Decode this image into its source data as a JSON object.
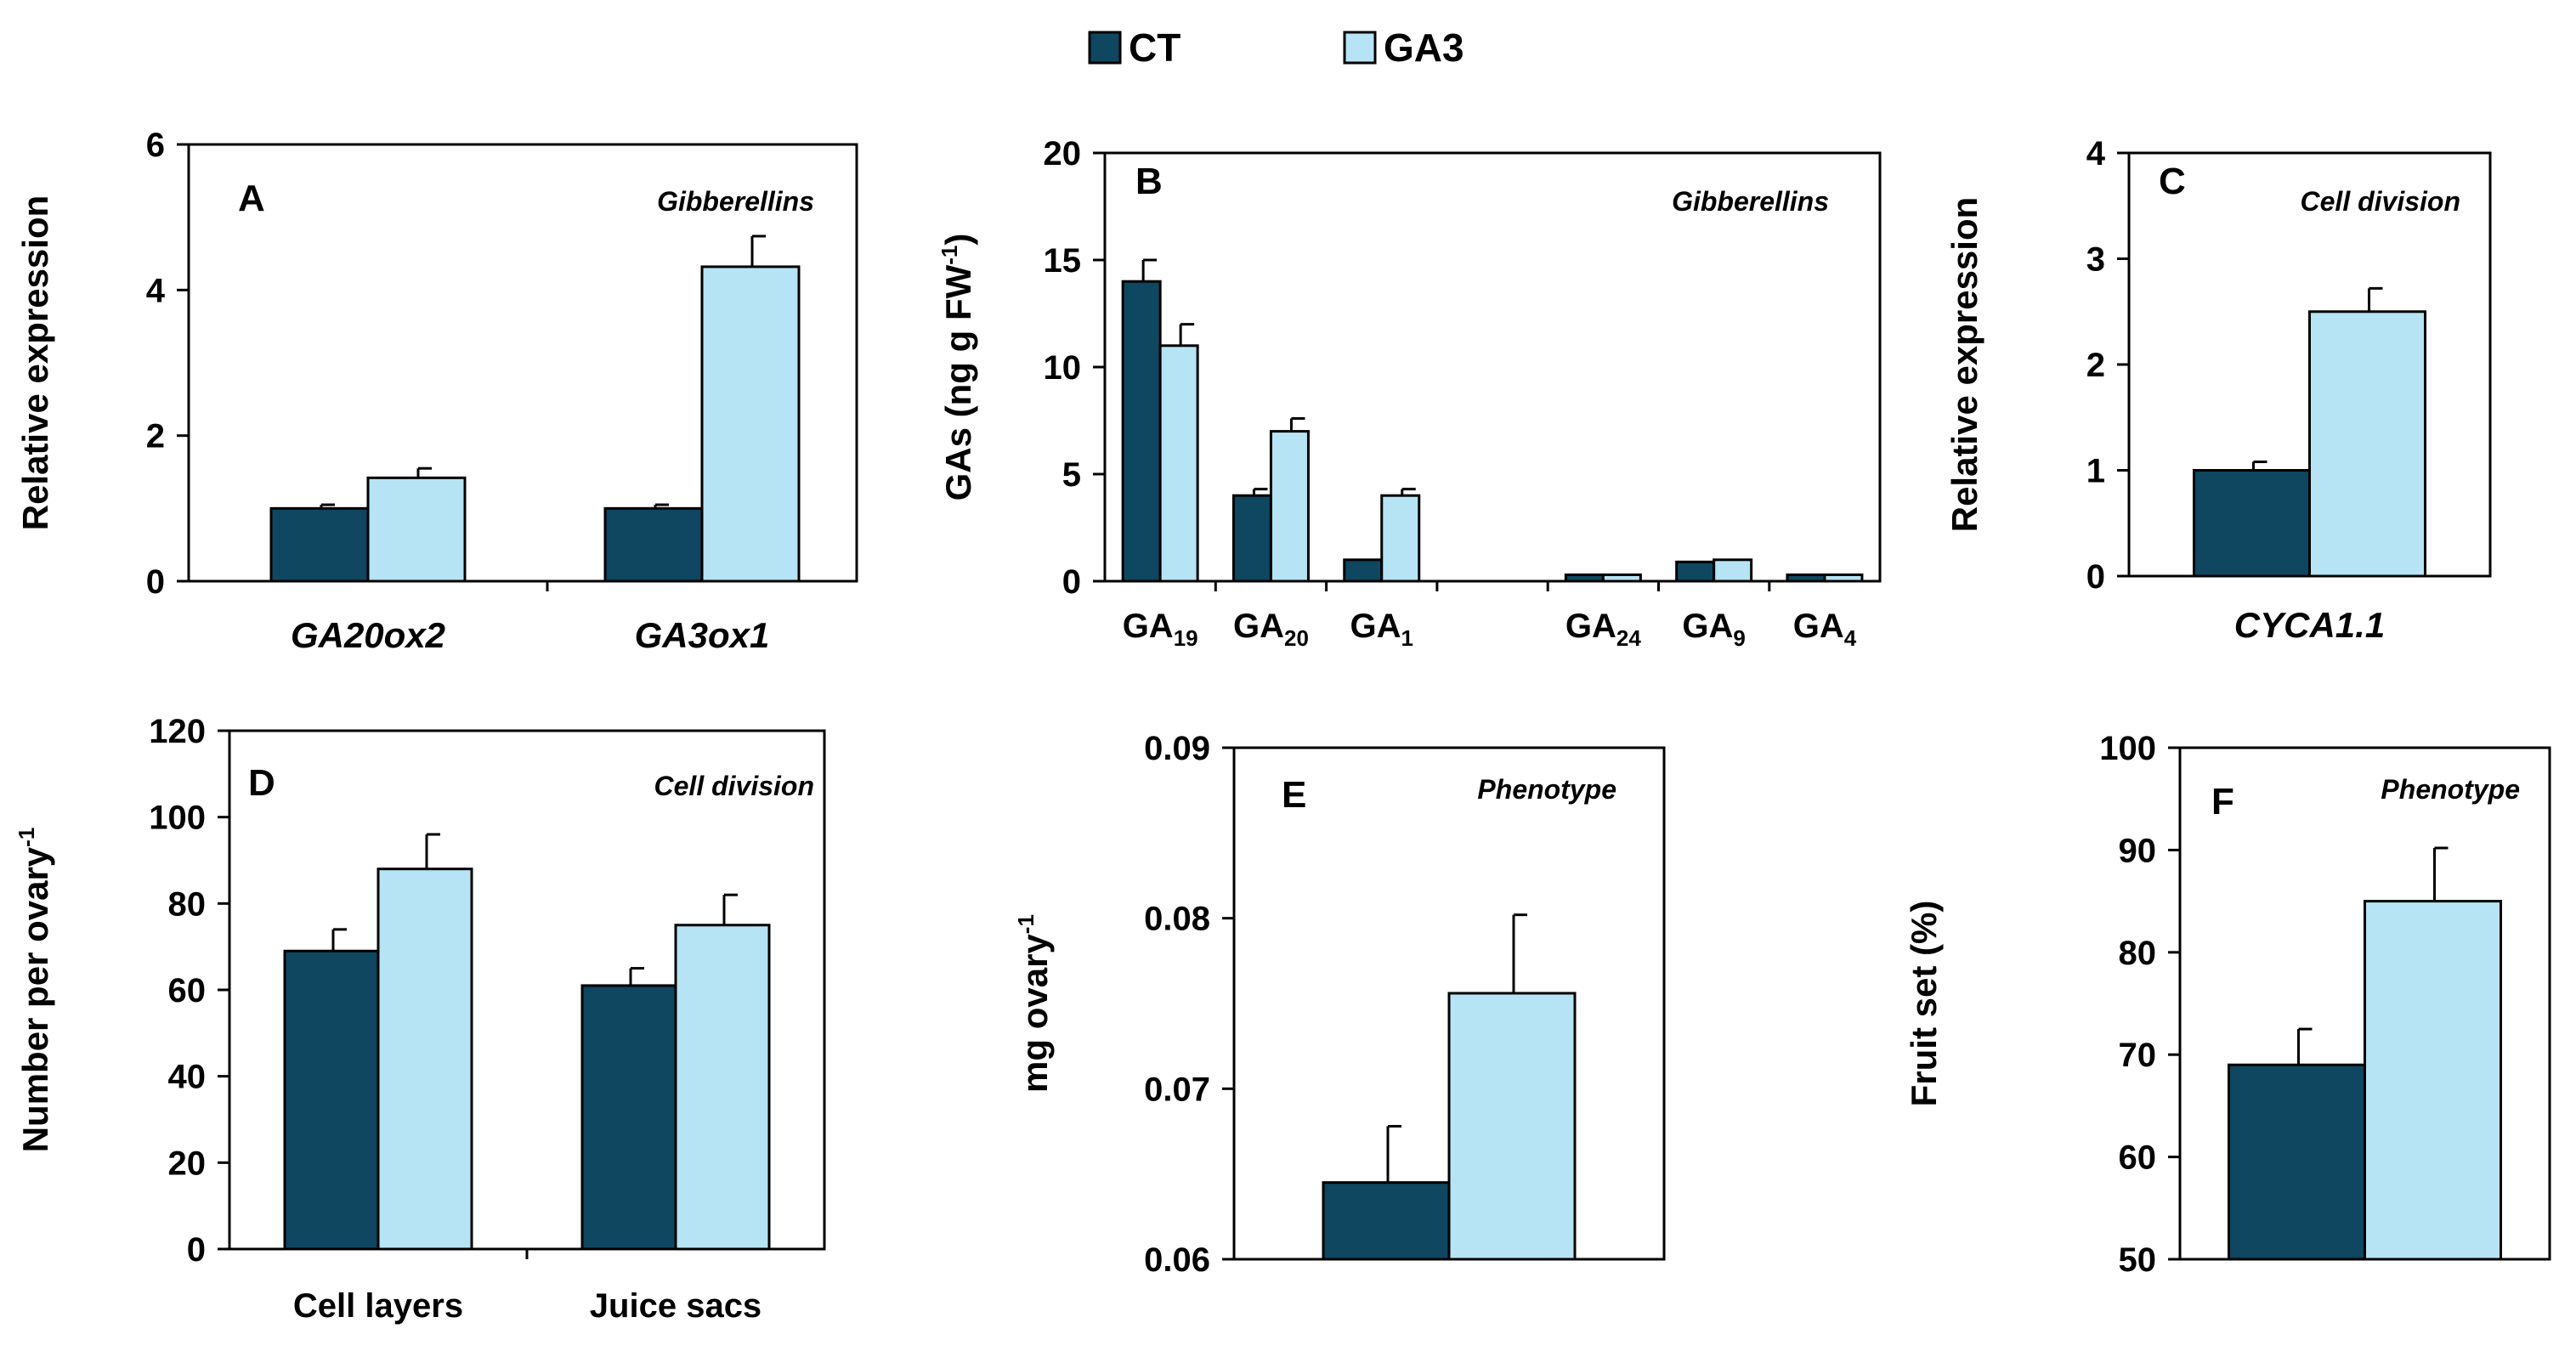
{
  "colors": {
    "CT": "#0f4660",
    "GA3": "#b6e4f4",
    "axis": "#000000"
  },
  "legend": [
    {
      "name": "CT",
      "color": "#0f4660"
    },
    {
      "name": "GA3",
      "color": "#b6e4f4"
    }
  ],
  "chart_data": [
    {
      "id": "A",
      "type": "bar",
      "panel_label": "A",
      "theme": "Gibberellins",
      "ylabel": "Relative expression",
      "ylim": [
        0,
        6
      ],
      "yticks": [
        0,
        2,
        4,
        6
      ],
      "ytick_labels": [
        "0",
        "2",
        "4",
        "6"
      ],
      "categories": [
        "GA20ox2",
        "GA3ox1"
      ],
      "category_style": "italic",
      "series": [
        {
          "name": "CT",
          "values": [
            1.0,
            1.0
          ],
          "errors": [
            0.05,
            0.05
          ]
        },
        {
          "name": "GA3",
          "values": [
            1.42,
            4.32
          ],
          "errors": [
            0.13,
            0.42
          ]
        }
      ]
    },
    {
      "id": "B",
      "type": "bar",
      "panel_label": "B",
      "theme": "Gibberellins",
      "ylabel": "GAs (ng g FW",
      "ylabel_sup": "-1",
      "ylabel_end": ")",
      "ylim": [
        0,
        20
      ],
      "yticks": [
        0,
        5,
        10,
        15,
        20
      ],
      "ytick_labels": [
        "0",
        "5",
        "10",
        "15",
        "20"
      ],
      "categories": [
        "GA19",
        "GA20",
        "GA1",
        "",
        "GA24",
        "GA9",
        "GA4"
      ],
      "category_parts": [
        [
          "GA",
          "19"
        ],
        [
          "GA",
          "20"
        ],
        [
          "GA",
          "1"
        ],
        [
          "",
          ""
        ],
        [
          "GA",
          "24"
        ],
        [
          "GA",
          "9"
        ],
        [
          "GA",
          "4"
        ]
      ],
      "series": [
        {
          "name": "CT",
          "values": [
            14.0,
            4.0,
            1.0,
            null,
            0.3,
            0.9,
            0.3
          ],
          "errors": [
            1.0,
            0.3,
            0,
            null,
            0,
            0,
            0
          ]
        },
        {
          "name": "GA3",
          "values": [
            11.0,
            7.0,
            4.0,
            null,
            0.3,
            1.0,
            0.3
          ],
          "errors": [
            1.0,
            0.6,
            0.3,
            null,
            0,
            0,
            0
          ]
        }
      ]
    },
    {
      "id": "C",
      "type": "bar",
      "panel_label": "C",
      "theme": "Cell division",
      "ylabel": "Relative expression",
      "ylim": [
        0,
        4
      ],
      "yticks": [
        0,
        1,
        2,
        3,
        4
      ],
      "ytick_labels": [
        "0",
        "1",
        "2",
        "3",
        "4"
      ],
      "categories": [
        "CYCA1.1"
      ],
      "category_style": "italic",
      "series": [
        {
          "name": "CT",
          "values": [
            1.0
          ],
          "errors": [
            0.08
          ]
        },
        {
          "name": "GA3",
          "values": [
            2.5
          ],
          "errors": [
            0.22
          ]
        }
      ]
    },
    {
      "id": "D",
      "type": "bar",
      "panel_label": "D",
      "theme": "Cell division",
      "ylabel": "Number per ovary",
      "ylabel_sup": "-1",
      "ylim": [
        0,
        120
      ],
      "yticks": [
        0,
        20,
        40,
        60,
        80,
        100,
        120
      ],
      "ytick_labels": [
        "0",
        "20",
        "40",
        "60",
        "80",
        "100",
        "120"
      ],
      "categories": [
        "Cell layers",
        "Juice sacs"
      ],
      "series": [
        {
          "name": "CT",
          "values": [
            69,
            61
          ],
          "errors": [
            5,
            4
          ]
        },
        {
          "name": "GA3",
          "values": [
            88,
            75
          ],
          "errors": [
            8,
            7
          ]
        }
      ]
    },
    {
      "id": "E",
      "type": "bar",
      "panel_label": "E",
      "theme": "Phenotype",
      "ylabel": "mg ovary",
      "ylabel_sup": "-1",
      "ylim": [
        0.06,
        0.09
      ],
      "yticks": [
        0.06,
        0.07,
        0.08,
        0.09
      ],
      "ytick_labels": [
        "0.06",
        "0.07",
        "0.08",
        "0.09"
      ],
      "categories": [
        ""
      ],
      "series": [
        {
          "name": "CT",
          "values": [
            0.0645
          ],
          "errors": [
            0.0033
          ]
        },
        {
          "name": "GA3",
          "values": [
            0.0756
          ],
          "errors": [
            0.0046
          ]
        }
      ]
    },
    {
      "id": "F",
      "type": "bar",
      "panel_label": "F",
      "theme": "Phenotype",
      "ylabel": "Fruit set (%)",
      "ylim": [
        50,
        100
      ],
      "yticks": [
        50,
        60,
        70,
        80,
        90,
        100
      ],
      "ytick_labels": [
        "50",
        "60",
        "70",
        "80",
        "90",
        "100"
      ],
      "categories": [
        ""
      ],
      "series": [
        {
          "name": "CT",
          "values": [
            69
          ],
          "errors": [
            3.5
          ]
        },
        {
          "name": "GA3",
          "values": [
            85
          ],
          "errors": [
            5.2
          ]
        }
      ]
    }
  ]
}
